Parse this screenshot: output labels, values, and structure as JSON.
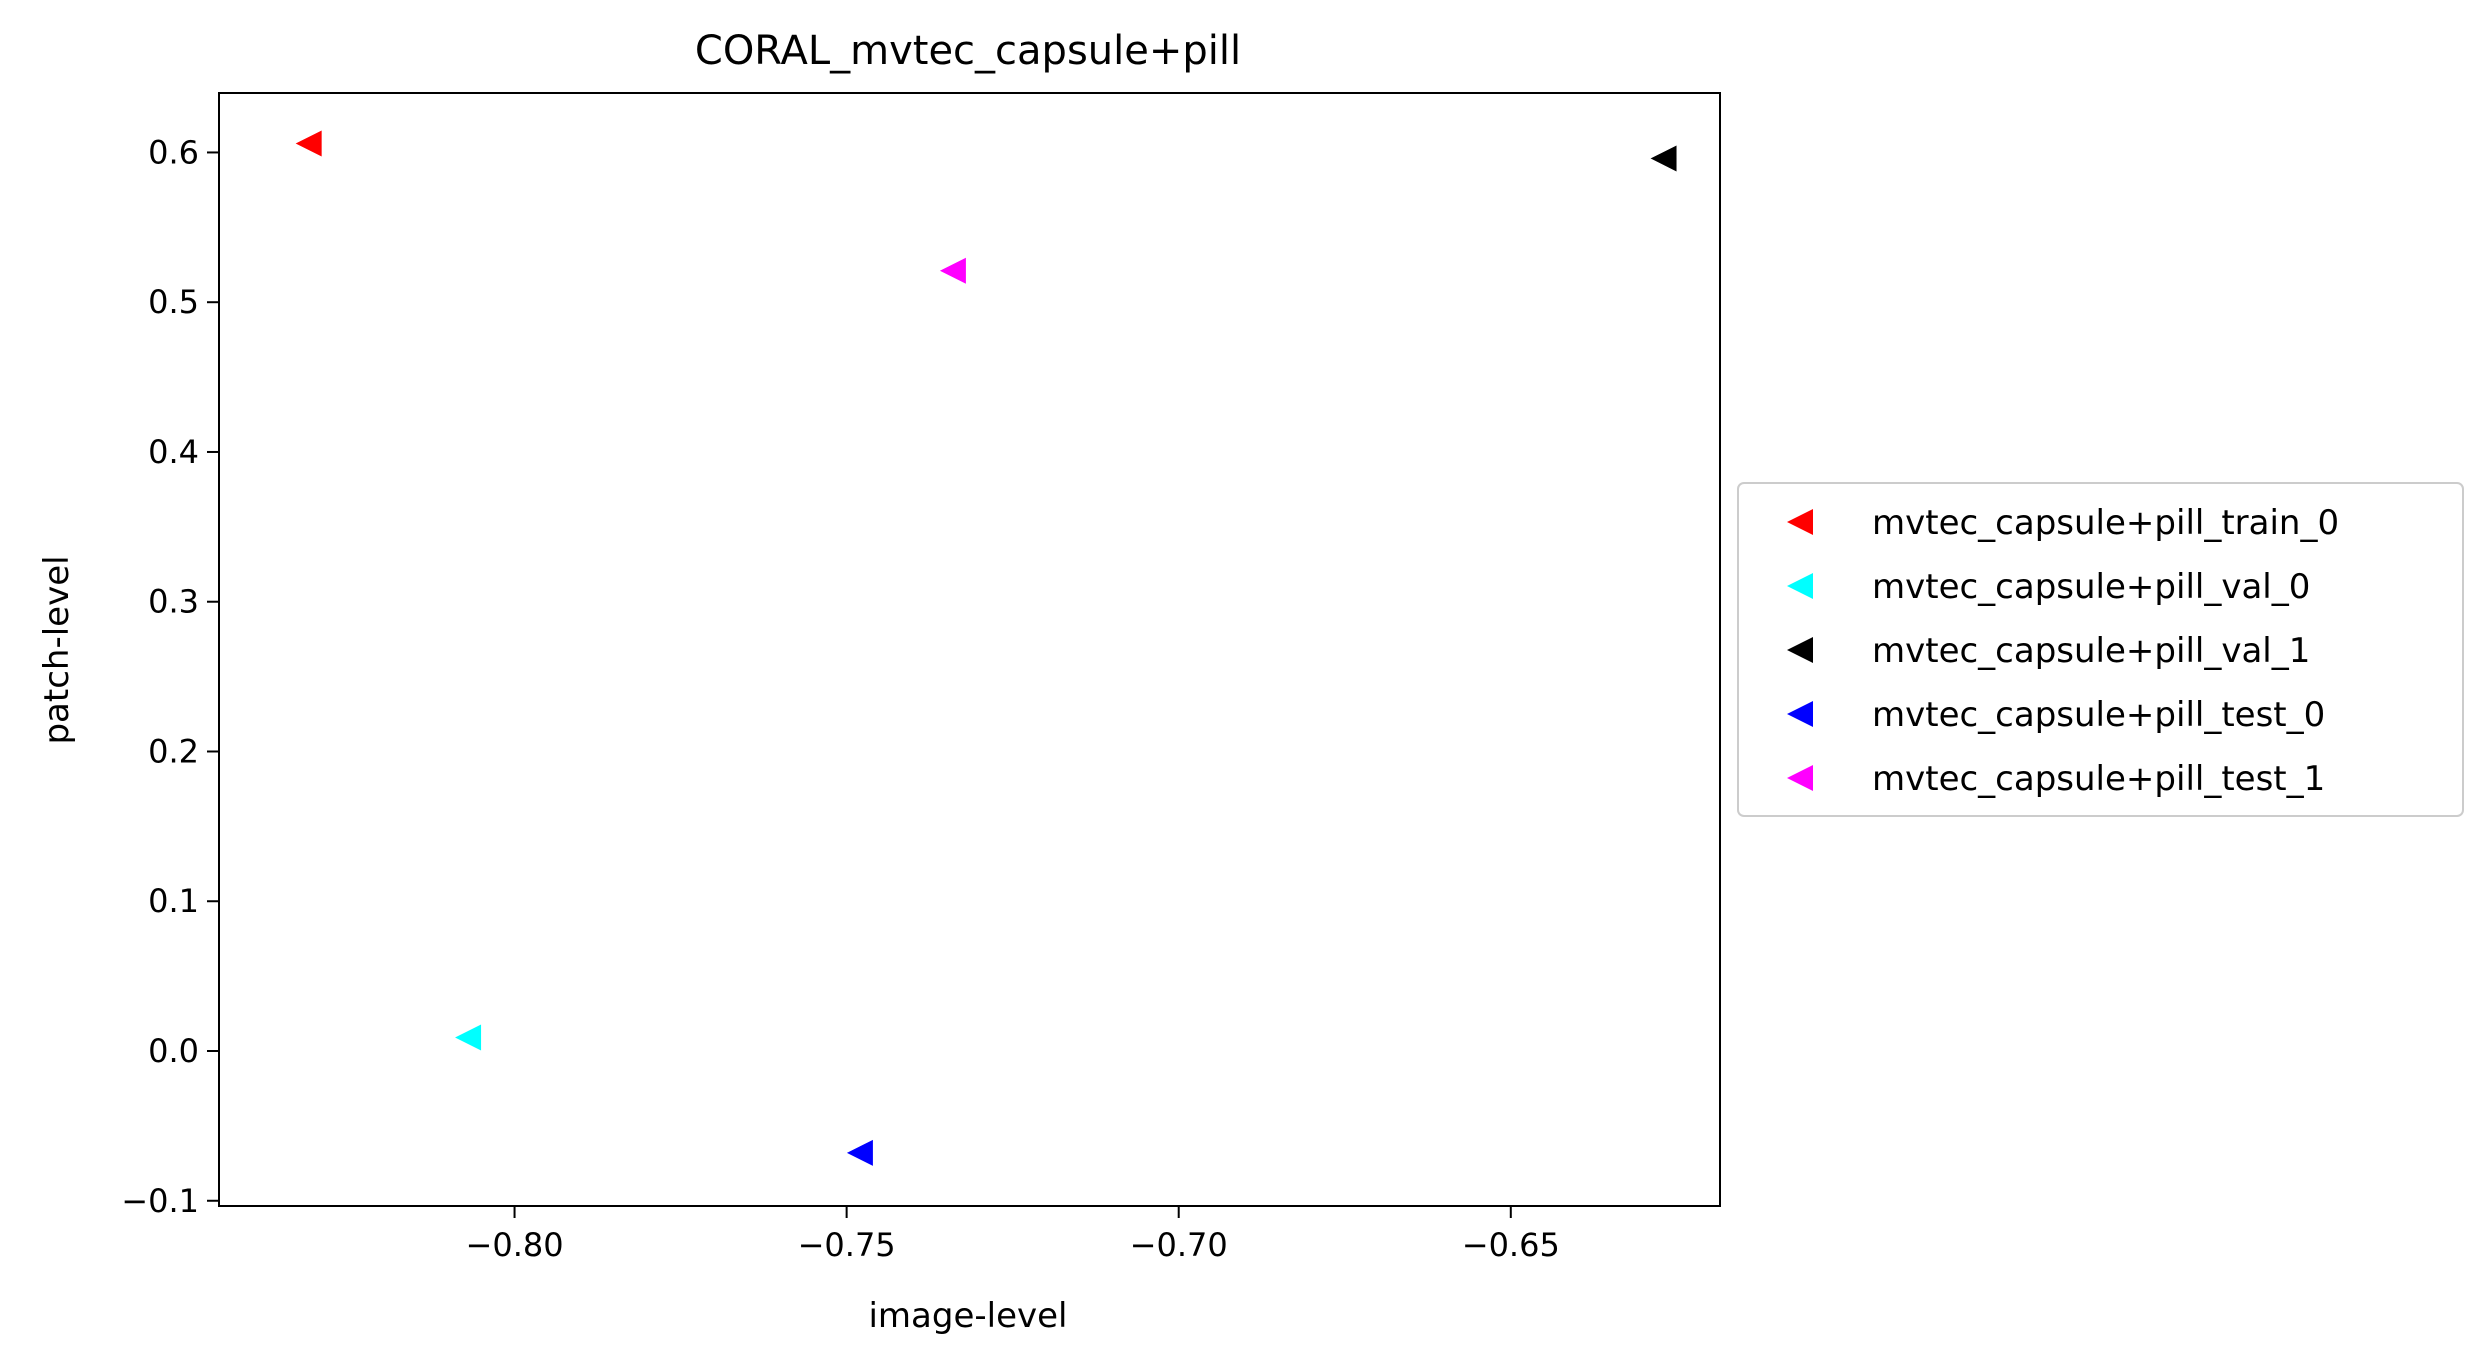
{
  "chart_data": {
    "type": "scatter",
    "title": "CORAL_mvtec_capsule+pill",
    "xlabel": "image-level",
    "ylabel": "patch-level",
    "xlim": [
      -0.8445,
      -0.6185
    ],
    "ylim": [
      -0.1035,
      0.6397
    ],
    "xticks": [
      {
        "value": -0.8,
        "label": "−0.80"
      },
      {
        "value": -0.75,
        "label": "−0.75"
      },
      {
        "value": -0.7,
        "label": "−0.70"
      },
      {
        "value": -0.65,
        "label": "−0.65"
      }
    ],
    "yticks": [
      {
        "value": -0.1,
        "label": "−0.1"
      },
      {
        "value": 0.0,
        "label": "0.0"
      },
      {
        "value": 0.1,
        "label": "0.1"
      },
      {
        "value": 0.2,
        "label": "0.2"
      },
      {
        "value": 0.3,
        "label": "0.3"
      },
      {
        "value": 0.4,
        "label": "0.4"
      },
      {
        "value": 0.5,
        "label": "0.5"
      },
      {
        "value": 0.6,
        "label": "0.6"
      }
    ],
    "marker": "triangle-left",
    "grid": false,
    "legend_position": "center-right-outside",
    "series": [
      {
        "name": "mvtec_capsule+pill_train_0",
        "color": "#ff0000",
        "points": [
          {
            "x": -0.831,
            "y": 0.606
          }
        ]
      },
      {
        "name": "mvtec_capsule+pill_val_0",
        "color": "#00ffff",
        "points": [
          {
            "x": -0.807,
            "y": 0.009
          }
        ]
      },
      {
        "name": "mvtec_capsule+pill_val_1",
        "color": "#000000",
        "points": [
          {
            "x": -0.627,
            "y": 0.596
          }
        ]
      },
      {
        "name": "mvtec_capsule+pill_test_0",
        "color": "#0000ff",
        "points": [
          {
            "x": -0.748,
            "y": -0.068
          }
        ]
      },
      {
        "name": "mvtec_capsule+pill_test_1",
        "color": "#ff00ff",
        "points": [
          {
            "x": -0.734,
            "y": 0.521
          }
        ]
      }
    ]
  }
}
